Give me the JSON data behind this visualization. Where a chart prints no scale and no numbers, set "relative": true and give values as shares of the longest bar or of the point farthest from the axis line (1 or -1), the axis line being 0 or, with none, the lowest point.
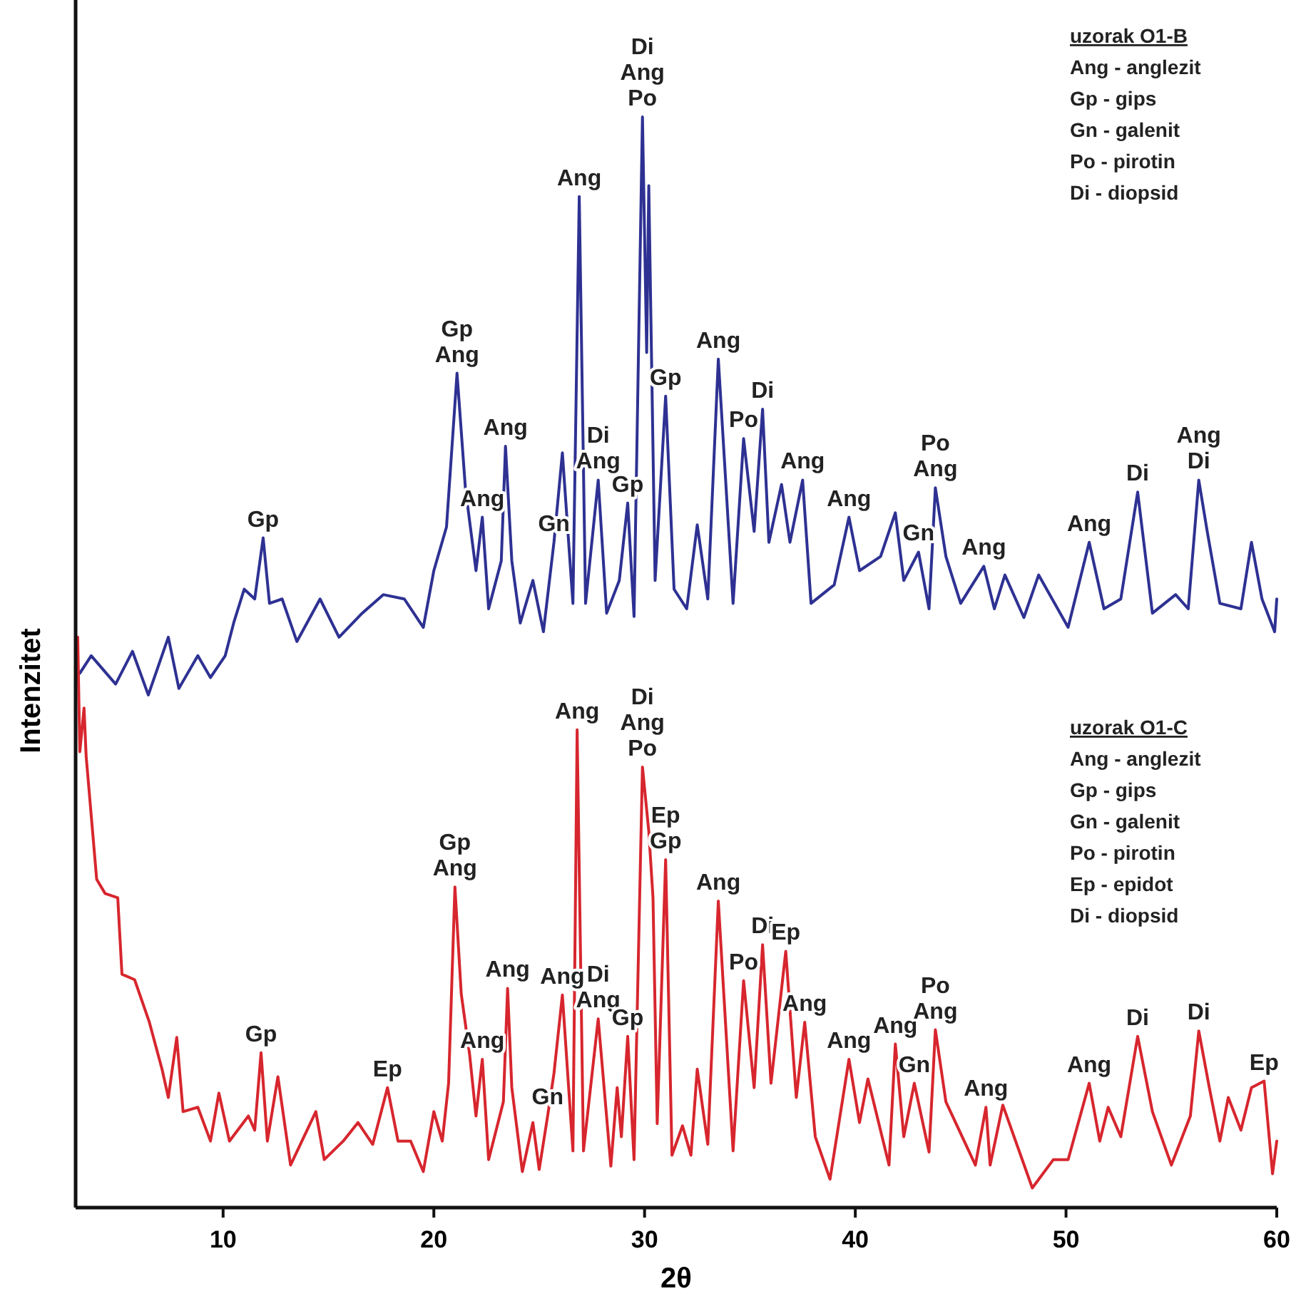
{
  "chart_data": {
    "type": "line",
    "relative": true,
    "xlabel": "2θ",
    "ylabel": "Intenzitet",
    "xlim": [
      3,
      60
    ],
    "xticks": [
      10,
      20,
      30,
      40,
      50,
      60
    ],
    "series": [
      {
        "color": "#2e3192",
        "x": [
          3.2,
          3.74,
          4.9,
          5.7,
          6.45,
          7.4,
          7.9,
          8.8,
          9.4,
          10.1,
          10.5,
          11.0,
          11.5,
          11.9,
          12.2,
          12.8,
          13.5,
          14.6,
          15.5,
          16.6,
          17.6,
          18.6,
          19.5,
          20.0,
          20.6,
          21.1,
          21.5,
          22.0,
          22.3,
          22.6,
          23.2,
          23.4,
          23.7,
          24.1,
          24.7,
          25.2,
          25.7,
          26.1,
          26.6,
          26.9,
          27.2,
          27.8,
          28.2,
          28.8,
          29.2,
          29.5,
          29.9,
          30.1,
          30.2,
          30.5,
          31.0,
          31.4,
          32.0,
          32.5,
          33.0,
          33.5,
          34.2,
          34.7,
          35.2,
          35.6,
          35.9,
          36.5,
          36.9,
          37.5,
          37.9,
          39.0,
          39.7,
          40.2,
          41.2,
          41.9,
          42.3,
          43.0,
          43.5,
          43.8,
          44.3,
          45.0,
          46.1,
          46.6,
          47.1,
          48.0,
          48.7,
          50.1,
          51.1,
          51.8,
          52.6,
          53.4,
          54.1,
          55.2,
          55.8,
          56.3,
          56.7,
          57.3,
          58.3,
          58.8,
          59.3,
          59.9,
          60.0
        ],
        "values": [
          0.49,
          0.506,
          0.48,
          0.51,
          0.47,
          0.523,
          0.476,
          0.506,
          0.486,
          0.506,
          0.536,
          0.567,
          0.558,
          0.614,
          0.554,
          0.558,
          0.519,
          0.558,
          0.523,
          0.545,
          0.562,
          0.558,
          0.532,
          0.584,
          0.624,
          0.765,
          0.659,
          0.584,
          0.633,
          0.549,
          0.593,
          0.698,
          0.593,
          0.536,
          0.575,
          0.528,
          0.61,
          0.692,
          0.554,
          0.927,
          0.554,
          0.667,
          0.545,
          0.575,
          0.646,
          0.542,
          1.0,
          0.784,
          0.937,
          0.575,
          0.744,
          0.567,
          0.549,
          0.626,
          0.558,
          0.778,
          0.554,
          0.705,
          0.62,
          0.732,
          0.61,
          0.663,
          0.61,
          0.667,
          0.554,
          0.571,
          0.633,
          0.584,
          0.597,
          0.637,
          0.575,
          0.601,
          0.549,
          0.66,
          0.597,
          0.554,
          0.588,
          0.549,
          0.58,
          0.541,
          0.58,
          0.532,
          0.61,
          0.549,
          0.558,
          0.656,
          0.545,
          0.562,
          0.549,
          0.667,
          0.62,
          0.554,
          0.549,
          0.61,
          0.558,
          0.528,
          0.558
        ]
      },
      {
        "color": "#d7262e",
        "x": [
          3.1,
          3.2,
          3.4,
          3.5,
          4.0,
          4.4,
          5.0,
          5.2,
          5.8,
          6.5,
          7.1,
          7.4,
          7.8,
          8.1,
          8.8,
          9.4,
          9.8,
          10.3,
          11.2,
          11.5,
          11.8,
          12.1,
          12.6,
          13.2,
          14.4,
          14.8,
          15.7,
          16.4,
          17.1,
          17.8,
          18.3,
          18.9,
          19.5,
          20.0,
          20.4,
          20.7,
          21.0,
          21.3,
          21.7,
          22.0,
          22.3,
          22.6,
          23.3,
          23.5,
          23.7,
          24.2,
          24.7,
          25.0,
          25.4,
          25.7,
          26.1,
          26.6,
          26.8,
          27.1,
          27.8,
          28.4,
          28.7,
          28.9,
          29.2,
          29.5,
          29.9,
          30.2,
          30.4,
          30.6,
          31.0,
          31.3,
          31.8,
          32.2,
          32.5,
          33.0,
          33.5,
          34.2,
          34.7,
          35.2,
          35.6,
          36.0,
          36.7,
          37.2,
          37.6,
          38.1,
          38.8,
          39.7,
          40.2,
          40.6,
          41.6,
          41.9,
          42.3,
          42.8,
          43.5,
          43.8,
          44.3,
          45.7,
          46.2,
          46.4,
          47.0,
          48.4,
          49.4,
          50.1,
          51.1,
          51.6,
          52.0,
          52.6,
          53.4,
          54.1,
          55.0,
          55.9,
          56.3,
          56.8,
          57.3,
          57.7,
          58.3,
          58.8,
          59.4,
          59.8,
          60.0
        ],
        "values": [
          0.523,
          0.418,
          0.458,
          0.414,
          0.301,
          0.288,
          0.284,
          0.214,
          0.209,
          0.17,
          0.127,
          0.101,
          0.156,
          0.088,
          0.092,
          0.061,
          0.105,
          0.061,
          0.084,
          0.071,
          0.142,
          0.061,
          0.12,
          0.039,
          0.088,
          0.044,
          0.061,
          0.078,
          0.058,
          0.11,
          0.061,
          0.061,
          0.033,
          0.088,
          0.061,
          0.114,
          0.294,
          0.196,
          0.14,
          0.084,
          0.136,
          0.044,
          0.097,
          0.201,
          0.11,
          0.033,
          0.078,
          0.035,
          0.084,
          0.123,
          0.195,
          0.052,
          0.438,
          0.052,
          0.173,
          0.038,
          0.11,
          0.065,
          0.157,
          0.044,
          0.404,
          0.345,
          0.284,
          0.077,
          0.319,
          0.048,
          0.075,
          0.048,
          0.127,
          0.058,
          0.281,
          0.052,
          0.208,
          0.11,
          0.241,
          0.114,
          0.235,
          0.101,
          0.17,
          0.065,
          0.026,
          0.136,
          0.078,
          0.118,
          0.039,
          0.15,
          0.065,
          0.114,
          0.051,
          0.163,
          0.097,
          0.039,
          0.092,
          0.039,
          0.094,
          0.018,
          0.044,
          0.044,
          0.114,
          0.061,
          0.092,
          0.065,
          0.157,
          0.088,
          0.039,
          0.084,
          0.162,
          0.11,
          0.061,
          0.101,
          0.071,
          0.11,
          0.116,
          0.031,
          0.061
        ]
      }
    ],
    "annotations": [
      "uzorak O1-B\nAng - anglezit\nGp - gips\nGn - galenit\nPo - pirotin\nDi - diopsid",
      "uzorak O1-C\nAng - anglezit\nGp - gips\nGn - galenit\nPo - pirotin\nEp - epidot\nDi - diopsid",
      {
        "text": "Gp",
        "x": 11.9,
        "y": 0.614
      },
      {
        "text": "Gp\nAng",
        "x": 21.1,
        "y": 0.765
      },
      {
        "text": "Ang",
        "x": 22.3,
        "y": 0.633
      },
      {
        "text": "Ang",
        "x": 23.4,
        "y": 0.698
      },
      {
        "text": "Gn",
        "x": 25.7,
        "y": 0.61
      },
      {
        "text": "Ang",
        "x": 26.9,
        "y": 0.927
      },
      {
        "text": "Di\nAng",
        "x": 27.8,
        "y": 0.667
      },
      {
        "text": "Gp",
        "x": 29.2,
        "y": 0.646
      },
      {
        "text": "Di\nAng\nPo",
        "x": 29.9,
        "y": 1.0
      },
      {
        "text": "Gp",
        "x": 31.0,
        "y": 0.744
      },
      {
        "text": "Ang",
        "x": 33.5,
        "y": 0.778
      },
      {
        "text": "Po",
        "x": 34.7,
        "y": 0.705
      },
      {
        "text": "Di",
        "x": 35.6,
        "y": 0.732
      },
      {
        "text": "Ang",
        "x": 37.5,
        "y": 0.667
      },
      {
        "text": "Ang",
        "x": 39.7,
        "y": 0.633
      },
      {
        "text": "Gn",
        "x": 43.0,
        "y": 0.601
      },
      {
        "text": "Po\nAng",
        "x": 43.8,
        "y": 0.66
      },
      {
        "text": "Ang",
        "x": 46.1,
        "y": 0.588
      },
      {
        "text": "Ang",
        "x": 51.1,
        "y": 0.61
      },
      {
        "text": "Di",
        "x": 53.4,
        "y": 0.656
      },
      {
        "text": "Ang\nDi",
        "x": 56.3,
        "y": 0.667
      },
      {
        "text": "Gp",
        "x": 11.8,
        "y": 0.142
      },
      {
        "text": "Ep",
        "x": 17.8,
        "y": 0.11
      },
      {
        "text": "Gp\nAng",
        "x": 21.0,
        "y": 0.294
      },
      {
        "text": "Ang",
        "x": 22.3,
        "y": 0.136
      },
      {
        "text": "Ang",
        "x": 23.5,
        "y": 0.201
      },
      {
        "text": "Gn",
        "x": 25.4,
        "y": 0.084
      },
      {
        "text": "Ang",
        "x": 26.1,
        "y": 0.195
      },
      {
        "text": "Ang",
        "x": 26.8,
        "y": 0.438
      },
      {
        "text": "Di\nAng",
        "x": 27.8,
        "y": 0.173
      },
      {
        "text": "Gp",
        "x": 29.2,
        "y": 0.157
      },
      {
        "text": "Di\nAng\nPo",
        "x": 29.9,
        "y": 0.404
      },
      {
        "text": "Ep\nGp",
        "x": 31.0,
        "y": 0.319
      },
      {
        "text": "Ang",
        "x": 33.5,
        "y": 0.281
      },
      {
        "text": "Po",
        "x": 34.7,
        "y": 0.208
      },
      {
        "text": "Di",
        "x": 35.6,
        "y": 0.241
      },
      {
        "text": "Ep",
        "x": 36.7,
        "y": 0.235
      },
      {
        "text": "Ang",
        "x": 37.6,
        "y": 0.17
      },
      {
        "text": "Ang",
        "x": 39.7,
        "y": 0.136
      },
      {
        "text": "Ang",
        "x": 41.9,
        "y": 0.15
      },
      {
        "text": "Gn",
        "x": 42.8,
        "y": 0.114
      },
      {
        "text": "Po\nAng",
        "x": 43.8,
        "y": 0.163
      },
      {
        "text": "Ang",
        "x": 46.2,
        "y": 0.092
      },
      {
        "text": "Ang",
        "x": 51.1,
        "y": 0.114
      },
      {
        "text": "Di",
        "x": 53.4,
        "y": 0.157
      },
      {
        "text": "Di",
        "x": 56.3,
        "y": 0.162
      },
      {
        "text": "Ep",
        "x": 59.4,
        "y": 0.116
      }
    ]
  }
}
